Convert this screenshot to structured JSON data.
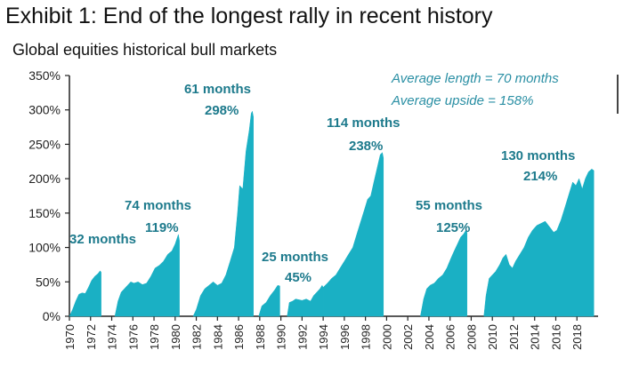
{
  "title": "Exhibit 1: End of the longest rally in recent history",
  "subtitle": "Global equities historical bull markets",
  "colors": {
    "area": "#1ab0c4",
    "annotation": "#1d7a8c",
    "note": "#2a8fa4"
  },
  "notes": {
    "avg_length": "Average length = 70 months",
    "avg_upside": "Average upside = 158%"
  },
  "chart_data": {
    "type": "area",
    "ylim": [
      0,
      350
    ],
    "yticks": [
      0,
      50,
      100,
      150,
      200,
      250,
      300,
      350
    ],
    "ytick_labels": [
      "0%",
      "50%",
      "100%",
      "150%",
      "200%",
      "250%",
      "300%",
      "350%"
    ],
    "xlim": [
      1970,
      2020
    ],
    "xtick_labels": [
      "1970",
      "1972",
      "1974",
      "1976",
      "1978",
      "1980",
      "1982",
      "1984",
      "1986",
      "1988",
      "1990",
      "1992",
      "1994",
      "1996",
      "1998",
      "2000",
      "2002",
      "2004",
      "2006",
      "2008",
      "2010",
      "2012",
      "2014",
      "2016",
      "2018"
    ],
    "grid": false,
    "legend": "none",
    "series": [
      {
        "months": "32 months",
        "upside": "",
        "points": [
          [
            1970.0,
            0
          ],
          [
            1970.3,
            10
          ],
          [
            1970.6,
            22
          ],
          [
            1970.9,
            32
          ],
          [
            1971.2,
            34
          ],
          [
            1971.5,
            33
          ],
          [
            1971.8,
            42
          ],
          [
            1972.1,
            52
          ],
          [
            1972.4,
            58
          ],
          [
            1972.7,
            62
          ],
          [
            1972.9,
            66
          ],
          [
            1973.0,
            64
          ]
        ]
      },
      {
        "months": "74 months",
        "upside": "119%",
        "points": [
          [
            1974.3,
            0
          ],
          [
            1974.6,
            22
          ],
          [
            1974.9,
            35
          ],
          [
            1975.2,
            40
          ],
          [
            1975.5,
            45
          ],
          [
            1975.8,
            50
          ],
          [
            1976.1,
            48
          ],
          [
            1976.5,
            50
          ],
          [
            1976.9,
            46
          ],
          [
            1977.3,
            48
          ],
          [
            1977.7,
            58
          ],
          [
            1978.1,
            70
          ],
          [
            1978.5,
            74
          ],
          [
            1978.9,
            80
          ],
          [
            1979.3,
            90
          ],
          [
            1979.7,
            95
          ],
          [
            1980.0,
            105
          ],
          [
            1980.3,
            119
          ],
          [
            1980.4,
            110
          ]
        ]
      },
      {
        "months": "61 months",
        "upside": "298%",
        "points": [
          [
            1981.7,
            0
          ],
          [
            1982.0,
            10
          ],
          [
            1982.4,
            30
          ],
          [
            1982.8,
            40
          ],
          [
            1983.2,
            45
          ],
          [
            1983.6,
            50
          ],
          [
            1984.0,
            45
          ],
          [
            1984.4,
            48
          ],
          [
            1984.8,
            60
          ],
          [
            1985.2,
            80
          ],
          [
            1985.6,
            100
          ],
          [
            1985.9,
            150
          ],
          [
            1986.1,
            190
          ],
          [
            1986.4,
            185
          ],
          [
            1986.7,
            240
          ],
          [
            1987.0,
            270
          ],
          [
            1987.2,
            295
          ],
          [
            1987.3,
            298
          ],
          [
            1987.4,
            290
          ]
        ]
      },
      {
        "months": "",
        "upside": "",
        "points": [
          [
            1987.9,
            0
          ],
          [
            1988.2,
            15
          ],
          [
            1988.6,
            20
          ],
          [
            1989.0,
            30
          ],
          [
            1989.4,
            38
          ],
          [
            1989.7,
            45
          ],
          [
            1989.9,
            44
          ]
        ]
      },
      {
        "months": "25 months",
        "upside": "45%",
        "points": [
          [
            1990.6,
            0
          ],
          [
            1990.8,
            20
          ],
          [
            1991.1,
            22
          ],
          [
            1991.4,
            25
          ],
          [
            1991.7,
            24
          ],
          [
            1992.0,
            23
          ],
          [
            1992.4,
            25
          ],
          [
            1992.8,
            22
          ],
          [
            1993.1,
            30
          ],
          [
            1993.4,
            35
          ],
          [
            1993.7,
            40
          ],
          [
            1993.9,
            45
          ],
          [
            1994.0,
            42
          ]
        ]
      },
      {
        "months": "114 months",
        "upside": "238%",
        "points": [
          [
            1994.0,
            42
          ],
          [
            1994.4,
            48
          ],
          [
            1994.8,
            55
          ],
          [
            1995.2,
            60
          ],
          [
            1995.6,
            70
          ],
          [
            1996.0,
            80
          ],
          [
            1996.4,
            90
          ],
          [
            1996.8,
            100
          ],
          [
            1997.2,
            120
          ],
          [
            1997.6,
            140
          ],
          [
            1997.9,
            155
          ],
          [
            1998.2,
            170
          ],
          [
            1998.5,
            175
          ],
          [
            1998.8,
            195
          ],
          [
            1999.1,
            215
          ],
          [
            1999.4,
            235
          ],
          [
            1999.6,
            238
          ],
          [
            1999.7,
            230
          ]
        ]
      },
      {
        "months": "55 months",
        "upside": "125%",
        "points": [
          [
            2003.2,
            0
          ],
          [
            2003.5,
            25
          ],
          [
            2003.8,
            40
          ],
          [
            2004.1,
            45
          ],
          [
            2004.5,
            48
          ],
          [
            2004.9,
            55
          ],
          [
            2005.3,
            60
          ],
          [
            2005.7,
            70
          ],
          [
            2006.1,
            85
          ],
          [
            2006.4,
            95
          ],
          [
            2006.7,
            105
          ],
          [
            2007.0,
            115
          ],
          [
            2007.3,
            120
          ],
          [
            2007.5,
            125
          ],
          [
            2007.6,
            122
          ]
        ]
      },
      {
        "months": "130 months",
        "upside": "214%",
        "points": [
          [
            2009.2,
            0
          ],
          [
            2009.4,
            30
          ],
          [
            2009.7,
            55
          ],
          [
            2010.0,
            60
          ],
          [
            2010.3,
            65
          ],
          [
            2010.7,
            75
          ],
          [
            2011.0,
            85
          ],
          [
            2011.3,
            90
          ],
          [
            2011.6,
            75
          ],
          [
            2011.9,
            70
          ],
          [
            2012.2,
            80
          ],
          [
            2012.6,
            90
          ],
          [
            2013.0,
            100
          ],
          [
            2013.4,
            115
          ],
          [
            2013.8,
            125
          ],
          [
            2014.2,
            132
          ],
          [
            2014.6,
            135
          ],
          [
            2015.0,
            138
          ],
          [
            2015.4,
            130
          ],
          [
            2015.8,
            122
          ],
          [
            2016.1,
            125
          ],
          [
            2016.5,
            140
          ],
          [
            2016.9,
            160
          ],
          [
            2017.3,
            180
          ],
          [
            2017.6,
            195
          ],
          [
            2017.9,
            190
          ],
          [
            2018.2,
            200
          ],
          [
            2018.5,
            185
          ],
          [
            2018.8,
            200
          ],
          [
            2019.1,
            210
          ],
          [
            2019.4,
            214
          ],
          [
            2019.6,
            212
          ]
        ]
      }
    ]
  }
}
